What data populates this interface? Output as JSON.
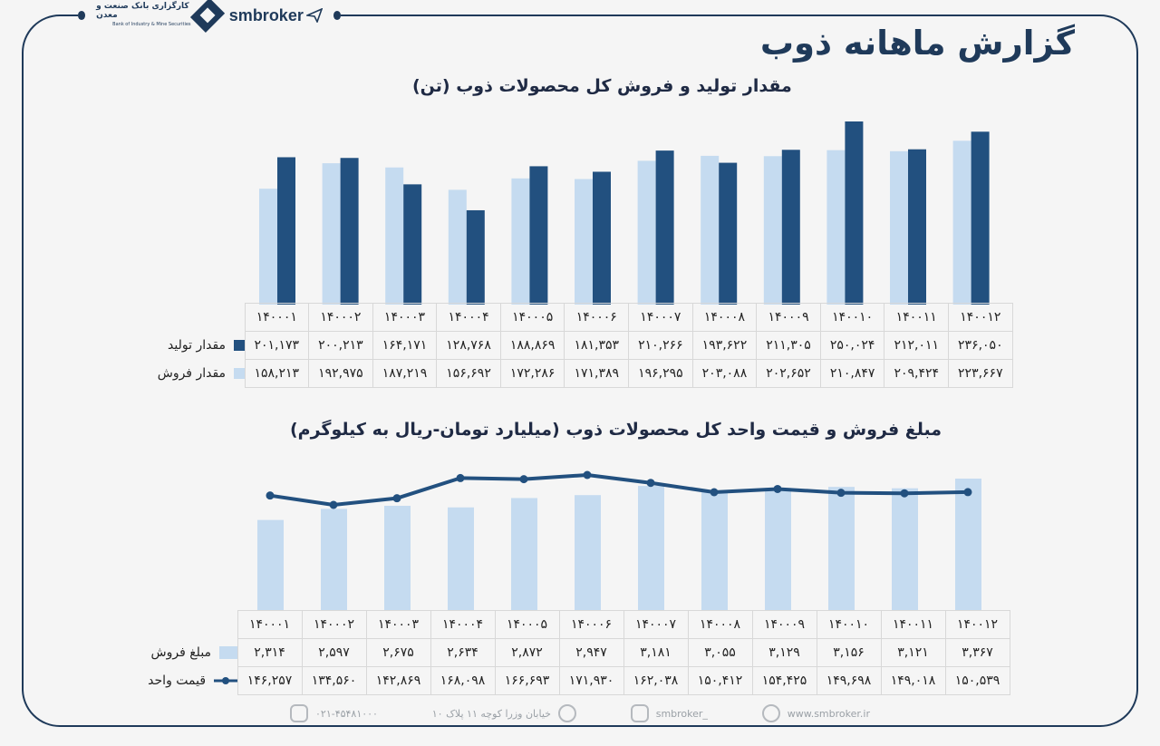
{
  "brand": {
    "bank_name": "کارگزاری بانک صنعت و معدن",
    "bank_name_en": "Bank of Industry & Mine Securities",
    "site_logo": "smbroker"
  },
  "title": "گزارش ماهانه ذوب",
  "colors": {
    "dark": "#22507f",
    "light": "#c5dbf0",
    "line": "#22507f"
  },
  "chart1": {
    "title": "مقدار تولید و فروش کل محصولات ذوب (تن)",
    "chart_data": {
      "type": "bar",
      "categories": [
        "۱۴۰۰۰۱",
        "۱۴۰۰۰۲",
        "۱۴۰۰۰۳",
        "۱۴۰۰۰۴",
        "۱۴۰۰۰۵",
        "۱۴۰۰۰۶",
        "۱۴۰۰۰۷",
        "۱۴۰۰۰۸",
        "۱۴۰۰۰۹",
        "۱۴۰۰۱۰",
        "۱۴۰۰۱۱",
        "۱۴۰۰۱۲"
      ],
      "series": [
        {
          "name": "مقدار تولید",
          "values": [
            201173,
            200213,
            164171,
            128768,
            188869,
            181353,
            210266,
            193622,
            211305,
            250024,
            212011,
            236050
          ],
          "labels": [
            "۲۰۱,۱۷۳",
            "۲۰۰,۲۱۳",
            "۱۶۴,۱۷۱",
            "۱۲۸,۷۶۸",
            "۱۸۸,۸۶۹",
            "۱۸۱,۳۵۳",
            "۲۱۰,۲۶۶",
            "۱۹۳,۶۲۲",
            "۲۱۱,۳۰۵",
            "۲۵۰,۰۲۴",
            "۲۱۲,۰۱۱",
            "۲۳۶,۰۵۰"
          ]
        },
        {
          "name": "مقدار فروش",
          "values": [
            158213,
            192975,
            187219,
            156692,
            172286,
            171389,
            196295,
            203088,
            202652,
            210847,
            209424,
            223667
          ],
          "labels": [
            "۱۵۸,۲۱۳",
            "۱۹۲,۹۷۵",
            "۱۸۷,۲۱۹",
            "۱۵۶,۶۹۲",
            "۱۷۲,۲۸۶",
            "۱۷۱,۳۸۹",
            "۱۹۶,۲۹۵",
            "۲۰۳,۰۸۸",
            "۲۰۲,۶۵۲",
            "۲۱۰,۸۴۷",
            "۲۰۹,۴۲۴",
            "۲۲۳,۶۶۷"
          ]
        }
      ],
      "ylim": [
        0,
        250024
      ],
      "grid": false
    }
  },
  "chart2": {
    "title": "مبلغ فروش و قیمت واحد کل محصولات ذوب (میلیارد تومان-ریال به کیلوگرم)",
    "chart_data": {
      "type": "bar",
      "categories": [
        "۱۴۰۰۰۱",
        "۱۴۰۰۰۲",
        "۱۴۰۰۰۳",
        "۱۴۰۰۰۴",
        "۱۴۰۰۰۵",
        "۱۴۰۰۰۶",
        "۱۴۰۰۰۷",
        "۱۴۰۰۰۸",
        "۱۴۰۰۰۹",
        "۱۴۰۰۱۰",
        "۱۴۰۰۱۱",
        "۱۴۰۰۱۲"
      ],
      "series": [
        {
          "name": "مبلغ فروش",
          "kind": "bar",
          "values": [
            2314,
            2597,
            2675,
            2634,
            2872,
            2947,
            3181,
            3055,
            3129,
            3156,
            3121,
            3367
          ],
          "labels": [
            "۲,۳۱۴",
            "۲,۵۹۷",
            "۲,۶۷۵",
            "۲,۶۳۴",
            "۲,۸۷۲",
            "۲,۹۴۷",
            "۳,۱۸۱",
            "۳,۰۵۵",
            "۳,۱۲۹",
            "۳,۱۵۶",
            "۳,۱۲۱",
            "۳,۳۶۷"
          ]
        },
        {
          "name": "قیمت واحد",
          "kind": "line",
          "values": [
            146257,
            134560,
            142869,
            168098,
            166693,
            171930,
            162038,
            150412,
            154425,
            149698,
            149018,
            150539
          ],
          "labels": [
            "۱۴۶,۲۵۷",
            "۱۳۴,۵۶۰",
            "۱۴۲,۸۶۹",
            "۱۶۸,۰۹۸",
            "۱۶۶,۶۹۳",
            "۱۷۱,۹۳۰",
            "۱۶۲,۰۳۸",
            "۱۵۰,۴۱۲",
            "۱۵۴,۴۲۵",
            "۱۴۹,۶۹۸",
            "۱۴۹,۰۱۸",
            "۱۵۰,۵۳۹"
          ]
        }
      ],
      "grid": false
    }
  },
  "footer": {
    "website": "www.smbroker.ir",
    "instagram": "smbroker_",
    "address": "خیابان وزرا کوچه ۱۱ پلاک ۱۰",
    "phone": "۰۲۱-۴۵۴۸۱۰۰۰"
  }
}
